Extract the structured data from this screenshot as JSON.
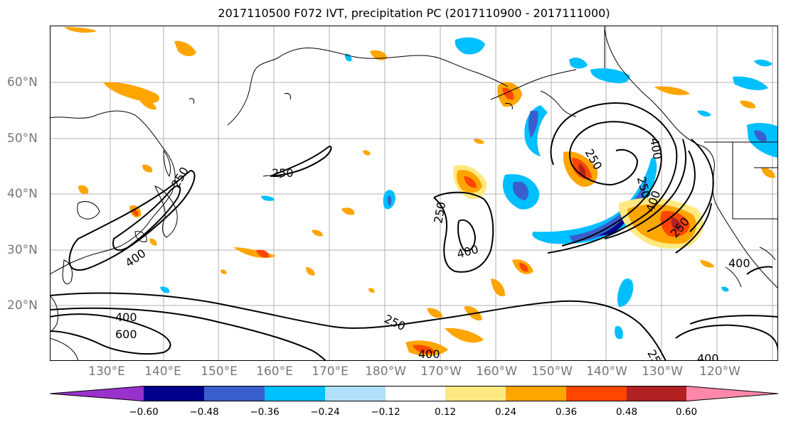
{
  "title": "2017110500 F072 IVT, precipitation PC (2017110900 - 2017111000)",
  "lon_labels": [
    "130°E",
    "140°E",
    "150°E",
    "160°E",
    "170°E",
    "180°W",
    "170°W",
    "160°W",
    "150°W",
    "140°W",
    "130°W",
    "120°W"
  ],
  "lat_labels": [
    "60°N",
    "50°N",
    "40°N",
    "30°N",
    "20°N"
  ],
  "contour_labels": [
    "250",
    "400",
    "250",
    "400",
    "600",
    "250",
    "400",
    "250",
    "400",
    "250",
    "400",
    "250",
    "400",
    "250",
    "400",
    "250",
    "400"
  ],
  "colorbar": {
    "ticks": [
      "−0.60",
      "−0.48",
      "−0.36",
      "−0.24",
      "−0.12",
      "0.12",
      "0.24",
      "0.36",
      "0.48",
      "0.60"
    ],
    "colors": [
      "#9932cc",
      "#00008b",
      "#3a5fcd",
      "#00bfff",
      "#b0e0fa",
      "#ffffff",
      "#ffe980",
      "#ffa500",
      "#ff4500",
      "#b22222",
      "#ff88aa"
    ]
  }
}
